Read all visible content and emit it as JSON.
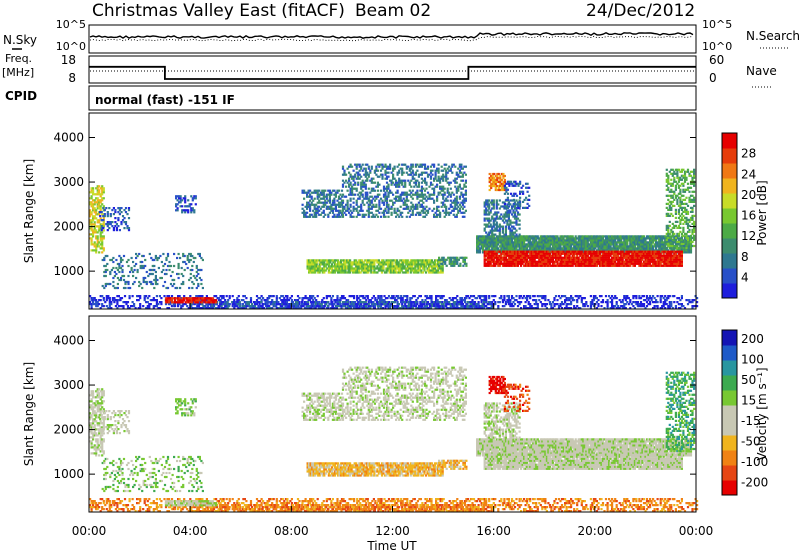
{
  "header": {
    "title": "Christmas Valley East (fitACF)",
    "beam": "Beam 02",
    "date": "24/Dec/2012"
  },
  "left_labels": {
    "nsky": "N.Sky",
    "freq_line1": "Freq.",
    "freq_line2": "[MHz]",
    "cpid": "CPID",
    "cpid_value": "normal (fast) -151 IF"
  },
  "right_labels": {
    "nsearch": "N.Search",
    "nave": "Nave"
  },
  "colors": {
    "power": [
      "#1e1edc",
      "#2850c8",
      "#2e7890",
      "#3c8c6e",
      "#4caa46",
      "#78c830",
      "#c8dc28",
      "#f0b41e",
      "#f07814",
      "#e63c0a",
      "#e60000"
    ],
    "velocity": [
      "#1414b4",
      "#1e5ac8",
      "#2896a0",
      "#3caa50",
      "#78c832",
      "#c8c8b4",
      "#c8c8b4",
      "#f0b41e",
      "#f08214",
      "#e64614",
      "#e60000"
    ]
  },
  "chart_data": [
    {
      "type": "line",
      "name": "noise",
      "yticks": [
        "10^5",
        "10^0"
      ],
      "right_yticks": [
        "10^5",
        "10^0"
      ],
      "series": [
        {
          "name": "N.Sky",
          "style": "solid"
        },
        {
          "name": "N.Search",
          "style": "dotted"
        }
      ]
    },
    {
      "type": "line",
      "name": "frequency",
      "left_yticks": [
        18,
        8
      ],
      "right_yticks": [
        60,
        0
      ],
      "series": [
        {
          "name": "Freq. [MHz]",
          "style": "solid",
          "x": [
            "00:00",
            "03:00",
            "03:00",
            "15:00",
            "15:00",
            "24:00"
          ],
          "y": [
            14,
            14,
            9.5,
            9.5,
            14,
            14
          ]
        },
        {
          "name": "Nave",
          "style": "dotted"
        }
      ]
    },
    {
      "type": "heatmap",
      "name": "power",
      "ylabel": "Slant Range [km]",
      "yticks": [
        1000,
        2000,
        3000,
        4000
      ],
      "ylim": [
        150,
        4550
      ],
      "xlim": [
        "00:00",
        "24:00"
      ],
      "colorbar": {
        "label": "Power [dB]",
        "ticks": [
          4,
          8,
          12,
          16,
          20,
          24,
          28
        ],
        "range": [
          0,
          32
        ]
      }
    },
    {
      "type": "heatmap",
      "name": "velocity",
      "ylabel": "Slant Range [km]",
      "yticks": [
        1000,
        2000,
        3000,
        4000
      ],
      "ylim": [
        150,
        4550
      ],
      "xlabel": "Time UT",
      "xticks": [
        "00:00",
        "04:00",
        "08:00",
        "12:00",
        "16:00",
        "20:00",
        "00:00"
      ],
      "colorbar": {
        "label": "Velocity [m s⁻¹]",
        "ticks": [
          200,
          100,
          50,
          15,
          -15,
          -50,
          -100,
          -200
        ]
      }
    }
  ]
}
